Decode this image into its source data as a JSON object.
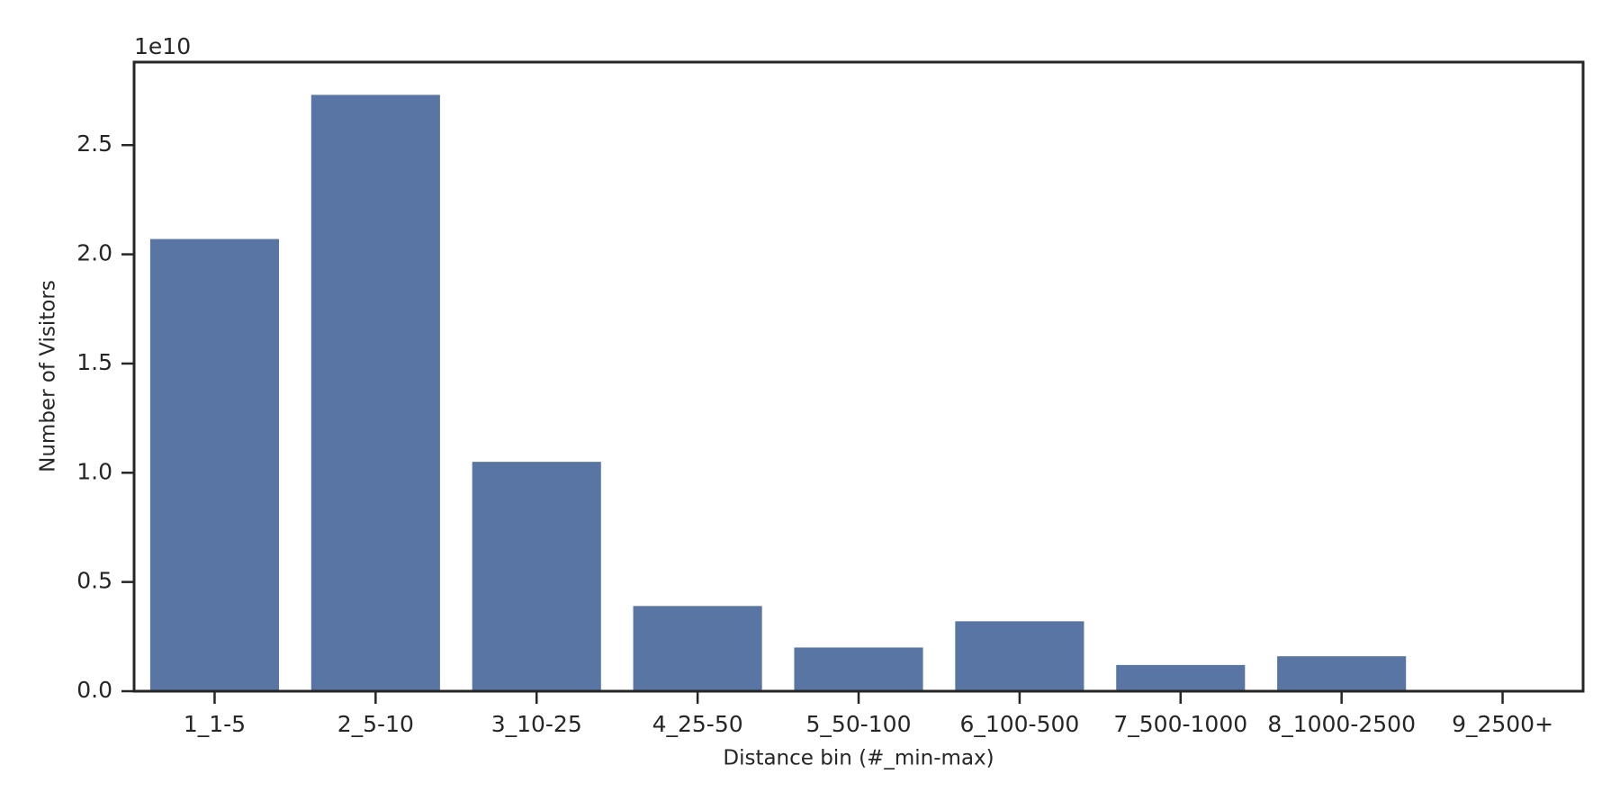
{
  "chart_data": {
    "type": "bar",
    "x_label": "Distance bin (#_min-max)",
    "y_label": "Number of Visitors",
    "y_offset_label": "1e10",
    "categories": [
      "1_1-5",
      "2_5-10",
      "3_10-25",
      "4_25-50",
      "5_50-100",
      "6_100-500",
      "7_500-1000",
      "8_1000-2500",
      "9_2500+"
    ],
    "values": [
      2.07,
      2.73,
      1.05,
      0.39,
      0.2,
      0.32,
      0.12,
      0.16,
      0
    ],
    "color": "#5975a4",
    "ylim": [
      0,
      2.88
    ],
    "yticks": [
      {
        "value": 0,
        "label": "0.0"
      },
      0.5,
      {
        "value": 1,
        "label": "1.0"
      },
      1.5,
      {
        "value": 2,
        "label": "2.0"
      },
      2.5
    ]
  }
}
